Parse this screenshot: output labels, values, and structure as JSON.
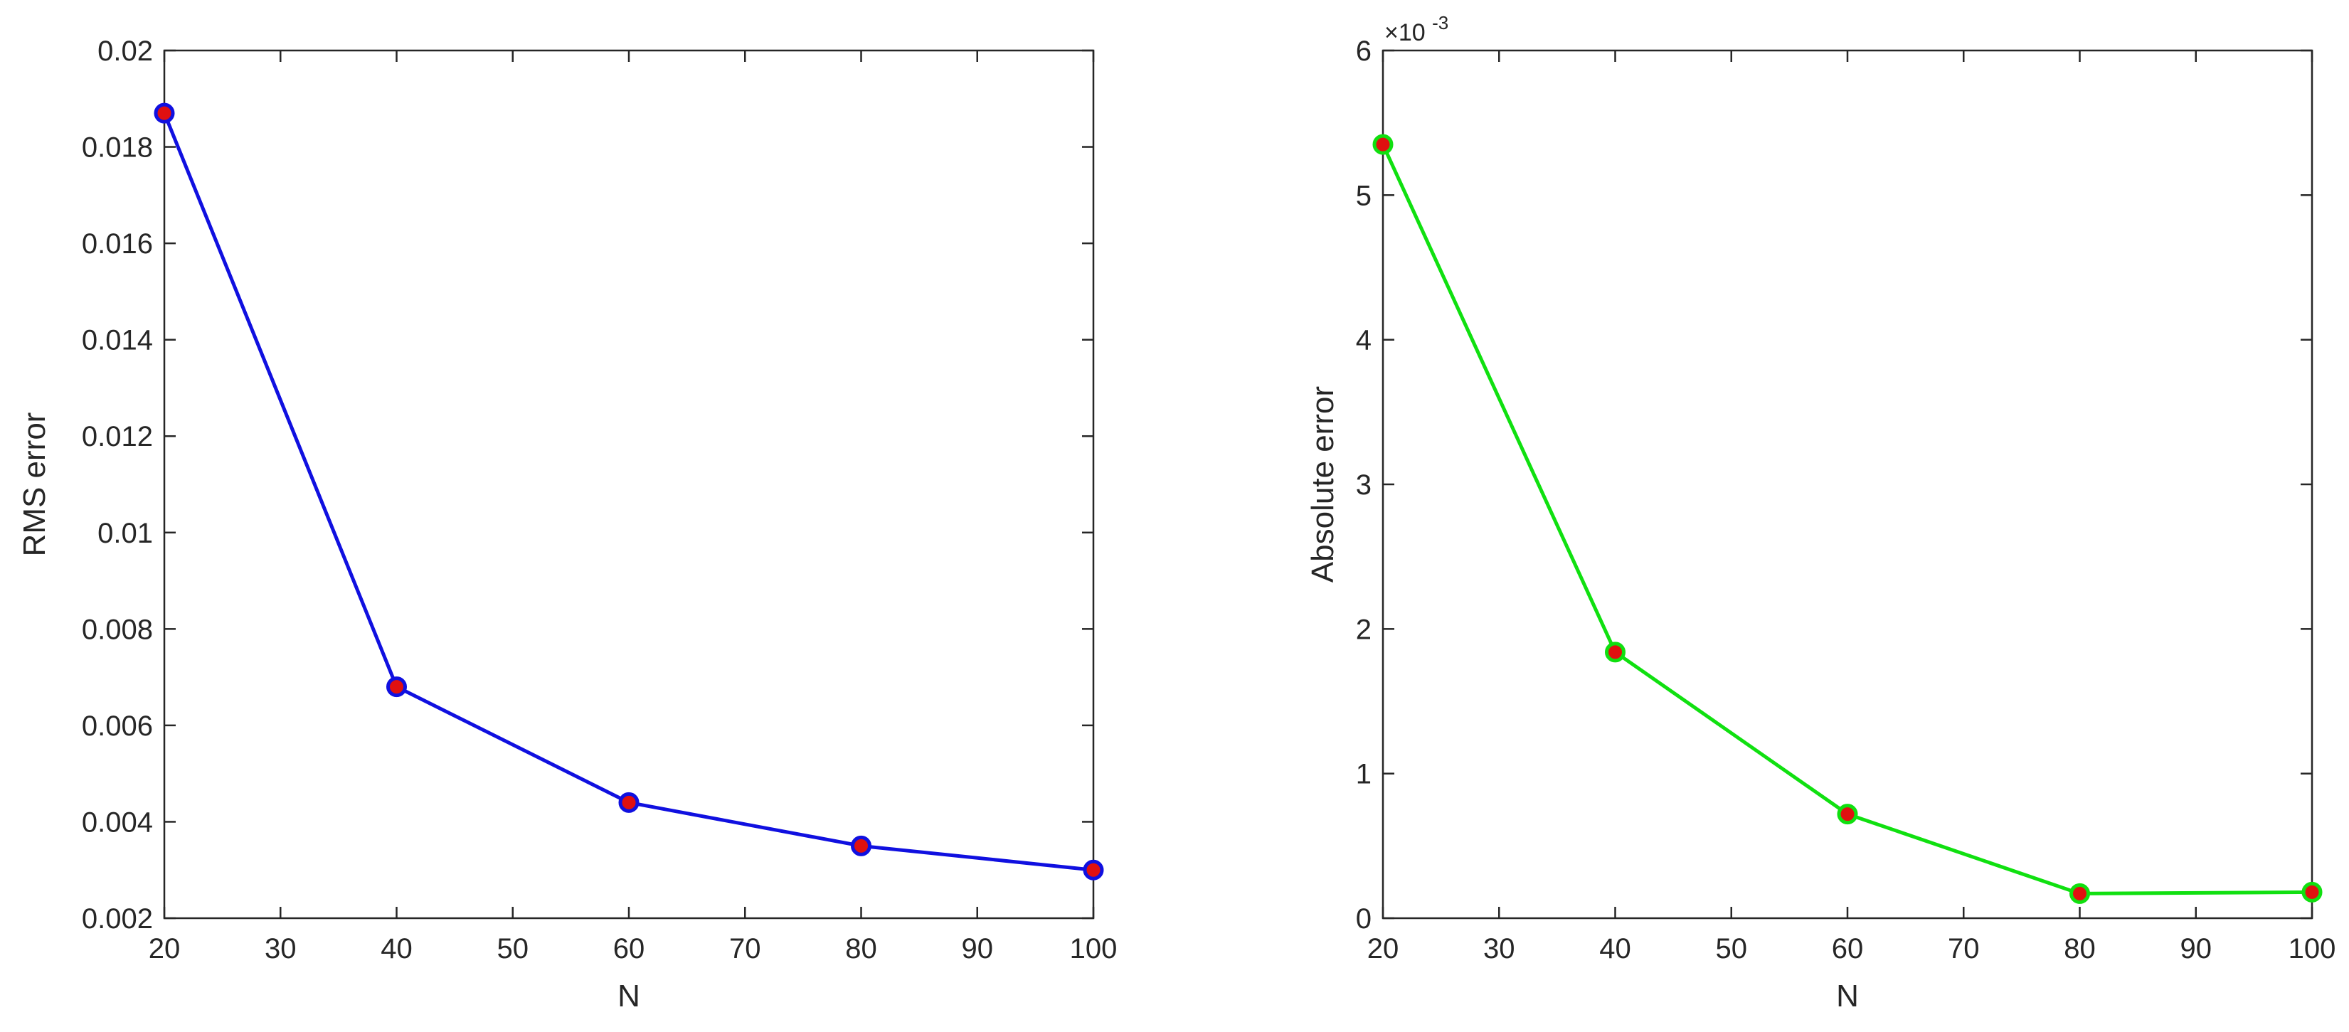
{
  "chart_data": [
    {
      "type": "line",
      "xlabel": "N",
      "ylabel": "RMS error",
      "xlim": [
        20,
        100
      ],
      "ylim": [
        0.002,
        0.02
      ],
      "xticks": [
        "20",
        "30",
        "40",
        "50",
        "60",
        "70",
        "80",
        "90",
        "100"
      ],
      "yticks": [
        "0.002",
        "0.004",
        "0.006",
        "0.008",
        "0.01",
        "0.012",
        "0.014",
        "0.016",
        "0.018",
        "0.02"
      ],
      "grid": false,
      "line_color": "#1010e0",
      "marker_edge_color": "#1010e0",
      "marker_face_color": "#e01010",
      "series": [
        {
          "x": [
            20,
            40,
            60,
            80,
            100
          ],
          "y": [
            0.0187,
            0.0068,
            0.0044,
            0.0035,
            0.003
          ]
        }
      ]
    },
    {
      "type": "line",
      "xlabel": "N",
      "ylabel": "Absolute error",
      "y_exponent_label": "×10",
      "y_exponent": "-3",
      "xlim": [
        20,
        100
      ],
      "ylim": [
        0,
        6
      ],
      "xticks": [
        "20",
        "30",
        "40",
        "50",
        "60",
        "70",
        "80",
        "90",
        "100"
      ],
      "yticks": [
        "0",
        "1",
        "2",
        "3",
        "4",
        "5",
        "6"
      ],
      "y_units": "×10^-3",
      "grid": false,
      "line_color": "#10e010",
      "marker_edge_color": "#10e010",
      "marker_face_color": "#e01010",
      "series": [
        {
          "x": [
            20,
            40,
            60,
            80,
            100
          ],
          "y": [
            5.35,
            1.84,
            0.72,
            0.17,
            0.18
          ]
        }
      ]
    }
  ]
}
